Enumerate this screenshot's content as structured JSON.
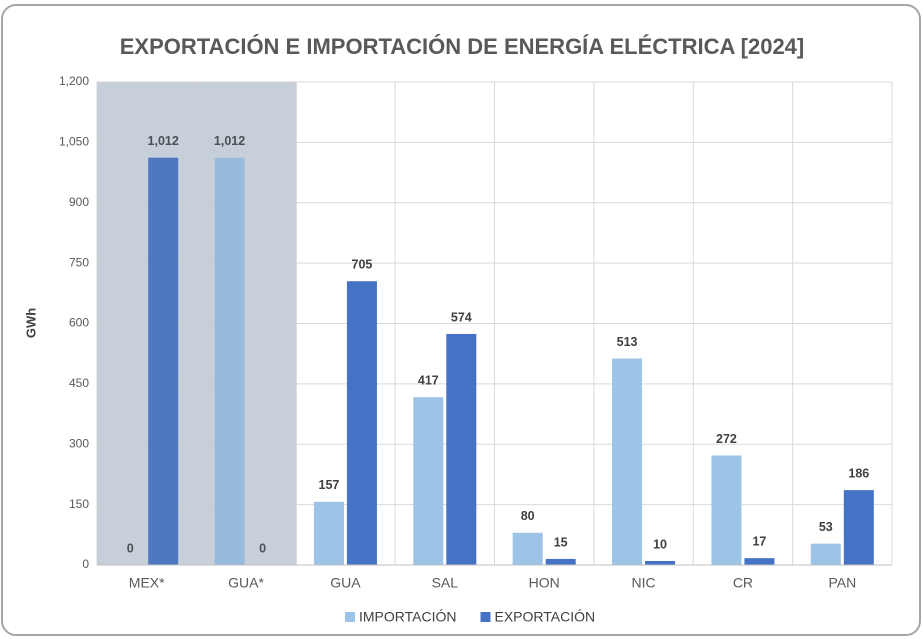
{
  "chart_data": {
    "type": "bar",
    "title": "EXPORTACIÓN E IMPORTACIÓN DE ENERGÍA ELÉCTRICA [2024]",
    "y_label": "GWh",
    "categories": [
      "MEX*",
      "GUA*",
      "GUA",
      "SAL",
      "HON",
      "NIC",
      "CR",
      "PAN"
    ],
    "series": [
      {
        "name": "IMPORTACIÓN",
        "color": "#9dc3e6",
        "values": [
          0,
          1012,
          157,
          417,
          80,
          513,
          272,
          53
        ],
        "value_labels": [
          "0",
          "1,012",
          "157",
          "417",
          "80",
          "513",
          "272",
          "53"
        ]
      },
      {
        "name": "EXPORTACIÓN",
        "color": "#4472c4",
        "values": [
          1012,
          0,
          705,
          574,
          15,
          10,
          17,
          186
        ],
        "value_labels": [
          "1,012",
          "0",
          "705",
          "574",
          "15",
          "10",
          "17",
          "186"
        ]
      }
    ],
    "ylim": [
      0,
      1200
    ],
    "yticks": [
      0,
      150,
      300,
      450,
      600,
      750,
      900,
      {
        "value": 1050,
        "label": "1,050"
      },
      {
        "value": 1200,
        "label": "1,200"
      }
    ],
    "grid": true,
    "legend": "bottom"
  }
}
